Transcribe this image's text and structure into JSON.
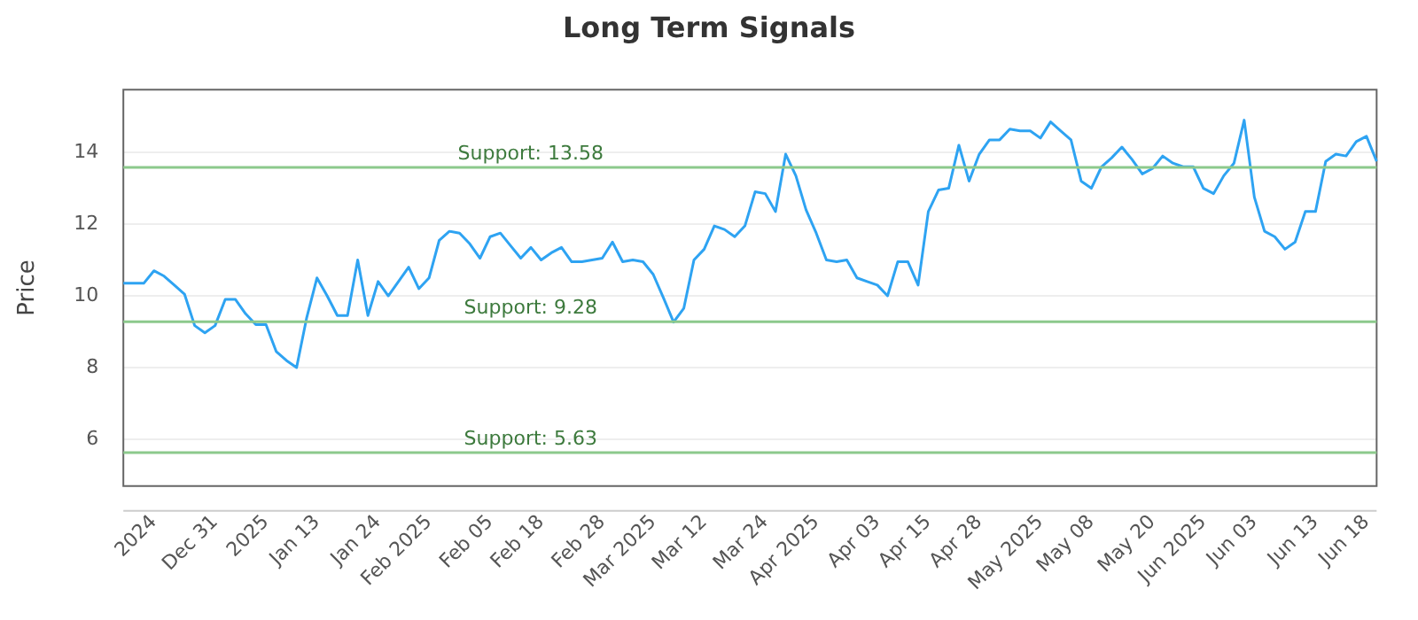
{
  "chart_data": {
    "type": "line",
    "title": "Long Term Signals",
    "ylabel": "Price",
    "categories": [
      null,
      null,
      null,
      "2024",
      null,
      null,
      null,
      null,
      null,
      "Dec 31",
      null,
      null,
      null,
      null,
      "2025",
      null,
      null,
      null,
      null,
      "Jan 13",
      null,
      null,
      null,
      null,
      null,
      "Jan 24",
      null,
      null,
      null,
      null,
      "Feb 2025",
      null,
      null,
      null,
      null,
      null,
      "Feb 05",
      null,
      null,
      null,
      null,
      "Feb 18",
      null,
      null,
      null,
      null,
      null,
      "Feb 28",
      null,
      null,
      null,
      null,
      "Mar 2025",
      null,
      null,
      null,
      null,
      "Mar 12",
      null,
      null,
      null,
      null,
      null,
      "Mar 24",
      null,
      null,
      null,
      null,
      "Apr 2025",
      null,
      null,
      null,
      null,
      null,
      "Apr 03",
      null,
      null,
      null,
      null,
      "Apr 15",
      null,
      null,
      null,
      null,
      "Apr 28",
      null,
      null,
      null,
      null,
      null,
      "May 2025",
      null,
      null,
      null,
      null,
      "May 08",
      null,
      null,
      null,
      null,
      null,
      "May 20",
      null,
      null,
      null,
      null,
      "Jun 2025",
      null,
      null,
      null,
      null,
      "Jun 03",
      null,
      null,
      null,
      null,
      null,
      "Jun 13",
      null,
      null,
      null,
      null,
      "Jun 18",
      null
    ],
    "series": [
      {
        "color": "#2ea3f2",
        "values": [
          10.35,
          10.35,
          10.35,
          10.7,
          10.55,
          10.3,
          10.05,
          9.17,
          8.97,
          9.17,
          9.9,
          9.9,
          9.5,
          9.2,
          9.2,
          8.45,
          8.2,
          8.0,
          9.4,
          10.5,
          10.0,
          9.45,
          9.45,
          11.0,
          9.45,
          10.4,
          10.0,
          10.4,
          10.8,
          10.2,
          10.5,
          11.55,
          11.8,
          11.75,
          11.45,
          11.05,
          11.65,
          11.75,
          11.4,
          11.05,
          11.35,
          11.0,
          11.2,
          11.35,
          10.95,
          10.95,
          11.0,
          11.05,
          11.5,
          10.95,
          11.0,
          10.95,
          10.6,
          9.95,
          9.27,
          9.65,
          11.0,
          11.3,
          11.95,
          11.85,
          11.65,
          11.95,
          12.9,
          12.85,
          12.35,
          13.95,
          13.35,
          12.4,
          11.75,
          11.0,
          10.95,
          11.0,
          10.5,
          10.4,
          10.3,
          10.0,
          10.95,
          10.95,
          10.3,
          12.35,
          12.95,
          13.0,
          14.2,
          13.2,
          13.95,
          14.35,
          14.35,
          14.65,
          14.6,
          14.6,
          14.4,
          14.85,
          14.6,
          14.35,
          13.2,
          13.0,
          13.6,
          13.85,
          14.15,
          13.8,
          13.4,
          13.55,
          13.9,
          13.7,
          13.6,
          13.6,
          13.0,
          12.85,
          13.35,
          13.7,
          14.9,
          12.75,
          11.8,
          11.65,
          11.3,
          11.5,
          12.35,
          12.35,
          13.75,
          13.95,
          13.9,
          14.3,
          14.45,
          13.75
        ]
      }
    ],
    "ylim": [
      4.7,
      15.75
    ],
    "yticks": [
      6,
      8,
      10,
      12,
      14
    ],
    "grid": "y",
    "legend": false,
    "marker": "none",
    "line_style": "solid",
    "ref_lines": [
      {
        "axis": "y",
        "value": 13.58,
        "label": "Support: 13.58",
        "color": "#8cc98c"
      },
      {
        "axis": "y",
        "value": 9.28,
        "label": "Support: 9.28",
        "color": "#8cc98c"
      },
      {
        "axis": "y",
        "value": 5.63,
        "label": "Support: 5.63",
        "color": "#8cc98c"
      }
    ]
  }
}
